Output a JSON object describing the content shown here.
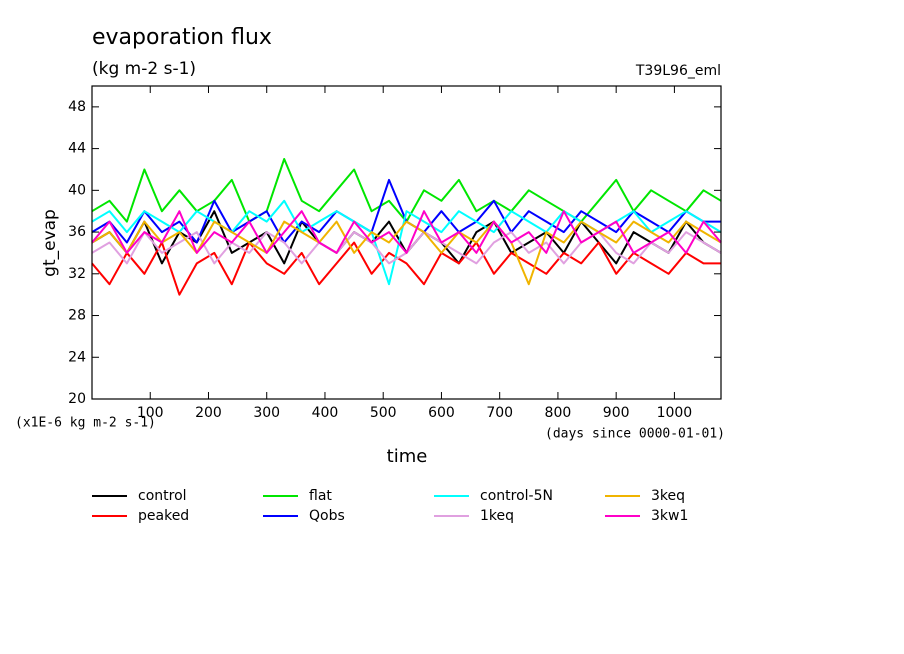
{
  "chart_data": {
    "type": "line",
    "title": "evaporation flux",
    "subtitle": "(kg m-2 s-1)",
    "annotation": "T39L96_eml",
    "y_label": "gt_evap",
    "x_label": "time",
    "y_unit_note": "(x1E-6 kg m-2 s-1)",
    "x_unit_note": "(days since 0000-01-01)",
    "x": [
      0,
      30,
      60,
      90,
      120,
      150,
      180,
      210,
      240,
      270,
      300,
      330,
      360,
      390,
      420,
      450,
      480,
      510,
      540,
      570,
      600,
      630,
      660,
      690,
      720,
      750,
      780,
      810,
      840,
      870,
      900,
      930,
      960,
      990,
      1020,
      1050,
      1080
    ],
    "xlim": [
      0,
      1080
    ],
    "xticks": [
      100,
      200,
      300,
      400,
      500,
      600,
      700,
      800,
      900,
      1000
    ],
    "ylim": [
      20,
      50
    ],
    "yticks": [
      20,
      24,
      28,
      32,
      36,
      40,
      44,
      48
    ],
    "series": [
      {
        "name": "control",
        "color": "#000000",
        "values": [
          35,
          36,
          34,
          37,
          33,
          36,
          35,
          38,
          34,
          35,
          36,
          33,
          37,
          35,
          34,
          36,
          35,
          37,
          34,
          36,
          35,
          33,
          36,
          37,
          34,
          35,
          36,
          34,
          37,
          35,
          33,
          36,
          35,
          34,
          37,
          35,
          34
        ]
      },
      {
        "name": "peaked",
        "color": "#ff0000",
        "values": [
          33,
          31,
          34,
          32,
          35,
          30,
          33,
          34,
          31,
          35,
          33,
          32,
          34,
          31,
          33,
          35,
          32,
          34,
          33,
          31,
          34,
          33,
          35,
          32,
          34,
          33,
          32,
          34,
          33,
          35,
          32,
          34,
          33,
          32,
          34,
          33,
          33
        ]
      },
      {
        "name": "flat",
        "color": "#00e600",
        "values": [
          38,
          39,
          37,
          42,
          38,
          40,
          38,
          39,
          41,
          37,
          38,
          43,
          39,
          38,
          40,
          42,
          38,
          39,
          37,
          40,
          39,
          41,
          38,
          39,
          38,
          40,
          39,
          38,
          37,
          39,
          41,
          38,
          40,
          39,
          38,
          40,
          39
        ]
      },
      {
        "name": "Qobs",
        "color": "#0000ff",
        "values": [
          36,
          37,
          35,
          38,
          36,
          37,
          35,
          39,
          36,
          37,
          38,
          35,
          37,
          36,
          38,
          37,
          36,
          41,
          37,
          36,
          38,
          36,
          37,
          39,
          36,
          38,
          37,
          36,
          38,
          37,
          36,
          38,
          37,
          36,
          38,
          37,
          37
        ]
      },
      {
        "name": "control-5N",
        "color": "#00ffff",
        "values": [
          37,
          38,
          36,
          38,
          37,
          36,
          38,
          37,
          36,
          38,
          37,
          39,
          36,
          37,
          38,
          37,
          36,
          31,
          38,
          37,
          36,
          38,
          37,
          36,
          38,
          37,
          36,
          38,
          37,
          36,
          37,
          38,
          36,
          37,
          38,
          37,
          36
        ]
      },
      {
        "name": "1keq",
        "color": "#e0a0e0",
        "values": [
          34,
          35,
          33,
          36,
          34,
          35,
          36,
          33,
          35,
          34,
          36,
          35,
          33,
          35,
          34,
          36,
          35,
          33,
          34,
          36,
          35,
          34,
          33,
          35,
          36,
          34,
          35,
          33,
          35,
          36,
          34,
          33,
          35,
          34,
          36,
          35,
          34
        ]
      },
      {
        "name": "3keq",
        "color": "#f0b400",
        "values": [
          35,
          36,
          34,
          37,
          35,
          36,
          34,
          37,
          36,
          35,
          34,
          37,
          36,
          35,
          37,
          34,
          36,
          35,
          37,
          36,
          34,
          36,
          35,
          37,
          35,
          31,
          36,
          35,
          37,
          36,
          35,
          37,
          36,
          35,
          37,
          36,
          35
        ]
      },
      {
        "name": "3kw1",
        "color": "#ff00c8",
        "values": [
          35,
          37,
          34,
          36,
          35,
          38,
          34,
          36,
          35,
          37,
          34,
          36,
          38,
          35,
          34,
          37,
          35,
          36,
          34,
          38,
          35,
          36,
          34,
          37,
          35,
          36,
          34,
          38,
          35,
          36,
          37,
          34,
          35,
          36,
          34,
          37,
          35
        ]
      }
    ]
  }
}
